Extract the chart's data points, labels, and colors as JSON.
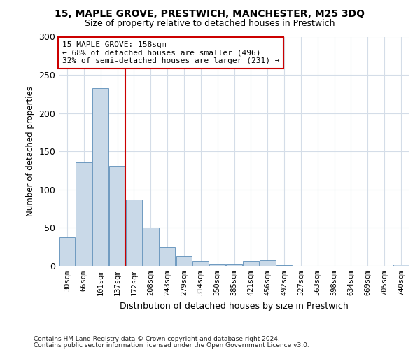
{
  "title": "15, MAPLE GROVE, PRESTWICH, MANCHESTER, M25 3DQ",
  "subtitle": "Size of property relative to detached houses in Prestwich",
  "xlabel": "Distribution of detached houses by size in Prestwich",
  "ylabel": "Number of detached properties",
  "bar_labels": [
    "30sqm",
    "66sqm",
    "101sqm",
    "137sqm",
    "172sqm",
    "208sqm",
    "243sqm",
    "279sqm",
    "314sqm",
    "350sqm",
    "385sqm",
    "421sqm",
    "456sqm",
    "492sqm",
    "527sqm",
    "563sqm",
    "598sqm",
    "634sqm",
    "669sqm",
    "705sqm",
    "740sqm"
  ],
  "bar_values": [
    38,
    136,
    233,
    131,
    87,
    50,
    25,
    13,
    6,
    3,
    3,
    6,
    7,
    1,
    0,
    0,
    0,
    0,
    0,
    0,
    2
  ],
  "bar_color": "#c9d9e8",
  "bar_edge_color": "#5b8db8",
  "vline_x": 3.5,
  "vline_color": "#cc0000",
  "annotation_line1": "15 MAPLE GROVE: 158sqm",
  "annotation_line2": "← 68% of detached houses are smaller (496)",
  "annotation_line3": "32% of semi-detached houses are larger (231) →",
  "annotation_box_color": "#ffffff",
  "annotation_box_edge": "#cc0000",
  "ylim": [
    0,
    300
  ],
  "yticks": [
    0,
    50,
    100,
    150,
    200,
    250,
    300
  ],
  "footer1": "Contains HM Land Registry data © Crown copyright and database right 2024.",
  "footer2": "Contains public sector information licensed under the Open Government Licence v3.0.",
  "bg_color": "#ffffff",
  "grid_color": "#d4dde8"
}
